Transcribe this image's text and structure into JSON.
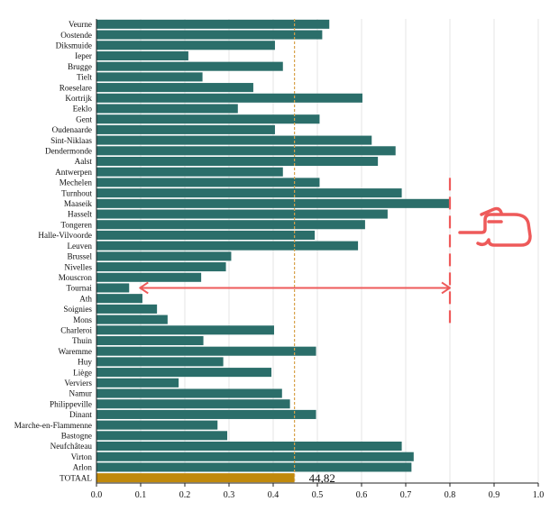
{
  "chart_data": {
    "type": "bar",
    "orientation": "horizontal",
    "categories": [
      "Veurne",
      "Oostende",
      "Diksmuide",
      "Ieper",
      "Brugge",
      "Tielt",
      "Roeselare",
      "Kortrijk",
      "Eeklo",
      "Gent",
      "Oudenaarde",
      "Sint-Niklaas",
      "Dendermonde",
      "Aalst",
      "Antwerpen",
      "Mechelen",
      "Turnhout",
      "Maaseik",
      "Hasselt",
      "Tongeren",
      "Halle-Vilvoorde",
      "Leuven",
      "Brussel",
      "Nivelles",
      "Mouscron",
      "Tournai",
      "Ath",
      "Soignies",
      "Mons",
      "Charleroi",
      "Thuin",
      "Waremme",
      "Huy",
      "Liège",
      "Verviers",
      "Namur",
      "Philippeville",
      "Dinant",
      "Marche-en-Flammenne",
      "Bastogne",
      "Neufchâteau",
      "Virton",
      "Arlon",
      "TOTAAL"
    ],
    "values": [
      0.527,
      0.511,
      0.404,
      0.208,
      0.422,
      0.24,
      0.355,
      0.602,
      0.32,
      0.505,
      0.404,
      0.623,
      0.677,
      0.637,
      0.422,
      0.505,
      0.691,
      0.8,
      0.659,
      0.608,
      0.494,
      0.592,
      0.305,
      0.293,
      0.237,
      0.074,
      0.104,
      0.137,
      0.161,
      0.402,
      0.242,
      0.497,
      0.287,
      0.396,
      0.186,
      0.42,
      0.438,
      0.497,
      0.274,
      0.296,
      0.691,
      0.718,
      0.713,
      0.4482
    ],
    "highlight_category": "TOTAAL",
    "data_labels": [
      {
        "category": "TOTAAL",
        "text": "44,82"
      }
    ],
    "xlim": [
      0.0,
      1.0
    ],
    "xticks": [
      "0.0",
      "0.1",
      "0.2",
      "0.3",
      "0.4",
      "0.5",
      "0.6",
      "0.7",
      "0.8",
      "0.9",
      "1.0"
    ],
    "reference_line": {
      "x": 0.4482,
      "style": "dotted"
    },
    "annotation": {
      "type": "range-arrow",
      "from": 0.074,
      "to": 0.8,
      "category": "Tournai",
      "marker_line_x": 0.8,
      "marker_from": "Mechelen",
      "marker_to": "Mons"
    },
    "grid": "vertical",
    "colors": {
      "bar": "#2b6e6a",
      "total": "#c0890c",
      "reference": "#d8a24a",
      "annotation": "#ee5a5a"
    },
    "icon": "pointing-hand-icon"
  }
}
